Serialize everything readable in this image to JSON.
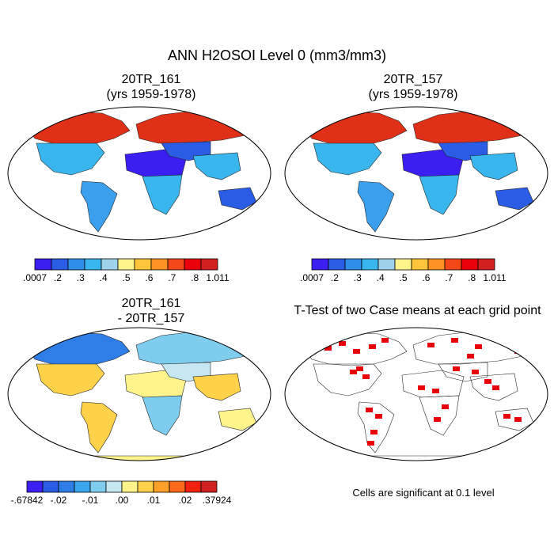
{
  "figure": {
    "title": "ANN H2OSOI Level 0 (mm3/mm3)",
    "note": "Cells are significant at 0.1 level"
  },
  "chart_data": [
    {
      "type": "heatmap",
      "title": "20TR_161",
      "subtitle": "(yrs 1959-1978)",
      "colorbar": {
        "labels": [
          ".0007",
          ".2",
          ".3",
          ".4",
          ".5",
          ".6",
          ".7",
          ".8",
          "1.011"
        ],
        "colors": [
          "#3b1ff2",
          "#2b5ce6",
          "#2f8ee8",
          "#3ab6ee",
          "#9dd2ea",
          "#fff38c",
          "#ffc53a",
          "#ff9222",
          "#f24716",
          "#e8000b",
          "#d02020"
        ]
      },
      "regions": [
        {
          "name": "Canada / Arctic North America",
          "value_class": "wet",
          "color": "#e03018"
        },
        {
          "name": "Northern Eurasia",
          "value_class": "wet",
          "color": "#e03018"
        },
        {
          "name": "United States",
          "value_class": "moderate",
          "color": "#3ab6ee"
        },
        {
          "name": "South America",
          "value_class": "moderate",
          "color": "#3aa0ee"
        },
        {
          "name": "Africa north (Sahara)",
          "value_class": "dry",
          "color": "#3b1ff2"
        },
        {
          "name": "Middle East / Central Asia",
          "value_class": "dry",
          "color": "#2b5ce6"
        },
        {
          "name": "Africa south",
          "value_class": "moderate",
          "color": "#3ab6ee"
        },
        {
          "name": "India / Southeast Asia",
          "value_class": "moderate",
          "color": "#3ab6ee"
        },
        {
          "name": "Australia",
          "value_class": "dry",
          "color": "#2b5ce6"
        }
      ]
    },
    {
      "type": "heatmap",
      "title": "20TR_157",
      "subtitle": "(yrs 1959-1978)",
      "colorbar": {
        "labels": [
          ".0007",
          ".2",
          ".3",
          ".4",
          ".5",
          ".6",
          ".7",
          ".8",
          "1.011"
        ],
        "colors": [
          "#3b1ff2",
          "#2b5ce6",
          "#2f8ee8",
          "#3ab6ee",
          "#9dd2ea",
          "#fff38c",
          "#ffc53a",
          "#ff9222",
          "#f24716",
          "#e8000b",
          "#d02020"
        ]
      },
      "regions": [
        {
          "name": "Canada / Arctic North America",
          "value_class": "wet",
          "color": "#e03018"
        },
        {
          "name": "Northern Eurasia",
          "value_class": "wet",
          "color": "#e03018"
        },
        {
          "name": "United States",
          "value_class": "moderate",
          "color": "#3ab6ee"
        },
        {
          "name": "South America",
          "value_class": "moderate",
          "color": "#3aa0ee"
        },
        {
          "name": "Africa north (Sahara)",
          "value_class": "dry",
          "color": "#3b1ff2"
        },
        {
          "name": "Middle East / Central Asia",
          "value_class": "dry",
          "color": "#2b5ce6"
        },
        {
          "name": "Africa south",
          "value_class": "moderate",
          "color": "#3ab6ee"
        },
        {
          "name": "India / Southeast Asia",
          "value_class": "moderate",
          "color": "#3ab6ee"
        },
        {
          "name": "Australia",
          "value_class": "dry",
          "color": "#2b5ce6"
        }
      ]
    },
    {
      "type": "heatmap",
      "title": "20TR_161",
      "subtitle": "- 20TR_157",
      "colorbar": {
        "labels": [
          "-.67842",
          "-.02",
          "-.01",
          ".00",
          ".01",
          ".02",
          ".37924"
        ],
        "colors": [
          "#3b1ff2",
          "#2b5ce6",
          "#2f7ee8",
          "#3aa6ee",
          "#7fcdee",
          "#c6e6f2",
          "#fff38c",
          "#ffd24a",
          "#ffa028",
          "#ff6a1a",
          "#f2200e",
          "#d02020"
        ]
      },
      "regions": [
        {
          "name": "Canada / Arctic North America",
          "value_class": "mixed",
          "color": "#2f7ee8"
        },
        {
          "name": "Northern Eurasia",
          "value_class": "mixed",
          "color": "#7fcdee"
        },
        {
          "name": "United States",
          "value_class": "mixed",
          "color": "#ffd24a"
        },
        {
          "name": "South America",
          "value_class": "mixed",
          "color": "#ffd24a"
        },
        {
          "name": "Africa north (Sahara)",
          "value_class": "near-zero",
          "color": "#fff38c"
        },
        {
          "name": "Middle East / Central Asia",
          "value_class": "near-zero",
          "color": "#c6e6f2"
        },
        {
          "name": "Africa south",
          "value_class": "mixed",
          "color": "#7fcdee"
        },
        {
          "name": "India / Southeast Asia",
          "value_class": "mixed",
          "color": "#ffd24a"
        },
        {
          "name": "Australia",
          "value_class": "near-zero",
          "color": "#fff38c"
        },
        {
          "name": "Antarctica",
          "value_class": "near-zero",
          "color": "#fff38c"
        }
      ]
    },
    {
      "type": "heatmap",
      "title": "T-Test of two Case means at each grid point",
      "significant_color": "#e8000b",
      "significant_regions": [
        "Canada",
        "Eastern United States",
        "Northern Eurasia",
        "Central Asia",
        "India",
        "Africa",
        "South America",
        "Australia"
      ]
    }
  ]
}
